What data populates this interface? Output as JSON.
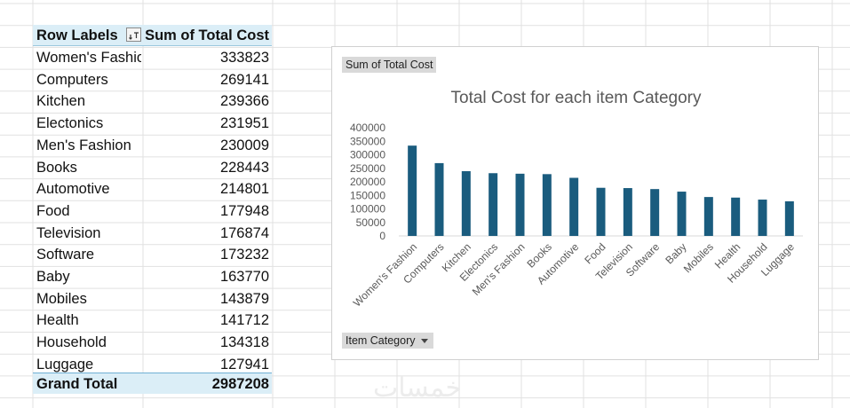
{
  "pivot": {
    "header": {
      "row_labels": "Row Labels",
      "sum_label": "Sum of Total Cost"
    },
    "rows": [
      {
        "label": "Women's Fashion",
        "value": "333823"
      },
      {
        "label": "Computers",
        "value": "269141"
      },
      {
        "label": "Kitchen",
        "value": "239366"
      },
      {
        "label": "Electonics",
        "value": "231951"
      },
      {
        "label": "Men's Fashion",
        "value": "230009"
      },
      {
        "label": "Books",
        "value": "228443"
      },
      {
        "label": "Automotive",
        "value": "214801"
      },
      {
        "label": "Food",
        "value": "177948"
      },
      {
        "label": "Television",
        "value": "176874"
      },
      {
        "label": "Software",
        "value": "173232"
      },
      {
        "label": "Baby",
        "value": "163770"
      },
      {
        "label": "Mobiles",
        "value": "143879"
      },
      {
        "label": "Health",
        "value": "141712"
      },
      {
        "label": "Household",
        "value": "134318"
      },
      {
        "label": "Luggage",
        "value": "127941"
      }
    ],
    "grand_total": {
      "label": "Grand Total",
      "value": "2987208"
    }
  },
  "chart": {
    "value_field_button": "Sum of Total Cost",
    "axis_field_button": "Item Category"
  },
  "chart_data": {
    "type": "bar",
    "title": "Total Cost for each item Category",
    "categories": [
      "Women's Fashion",
      "Computers",
      "Kitchen",
      "Electonics",
      "Men's Fashion",
      "Books",
      "Automotive",
      "Food",
      "Television",
      "Software",
      "Baby",
      "Mobiles",
      "Health",
      "Household",
      "Luggage"
    ],
    "series": [
      {
        "values": [
          333823,
          269141,
          239366,
          231951,
          230009,
          228443,
          214801,
          177948,
          176874,
          173232,
          163770,
          143879,
          141712,
          134318,
          127941
        ]
      }
    ],
    "ylim": [
      0,
      400000
    ],
    "yticks": [
      "0",
      "50000",
      "100000",
      "150000",
      "200000",
      "250000",
      "300000",
      "350000",
      "400000"
    ],
    "legend": "none",
    "grid": false,
    "bar_color": "#1a5c7e"
  },
  "watermark": "خمسات"
}
